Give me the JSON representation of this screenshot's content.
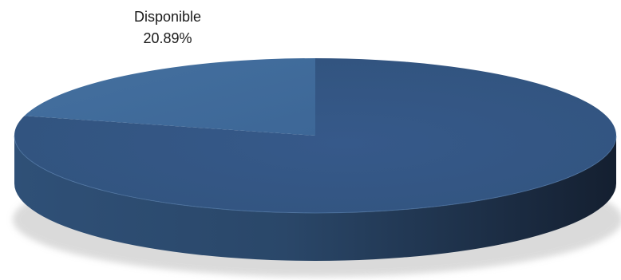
{
  "chart_data": {
    "type": "pie",
    "style": "3d",
    "categories": [
      "Disponible",
      ""
    ],
    "values": [
      20.89,
      79.11
    ],
    "data_labels": [
      {
        "category": "Disponible",
        "value": "20.89%"
      }
    ],
    "title": "",
    "legend": "none",
    "colors": {
      "slice_light_top": "#3f689a",
      "slice_dark_top": "#34567f",
      "side_left": "#2f5077",
      "side_right": "#141f30",
      "shadow": "#bdbdbd"
    }
  }
}
